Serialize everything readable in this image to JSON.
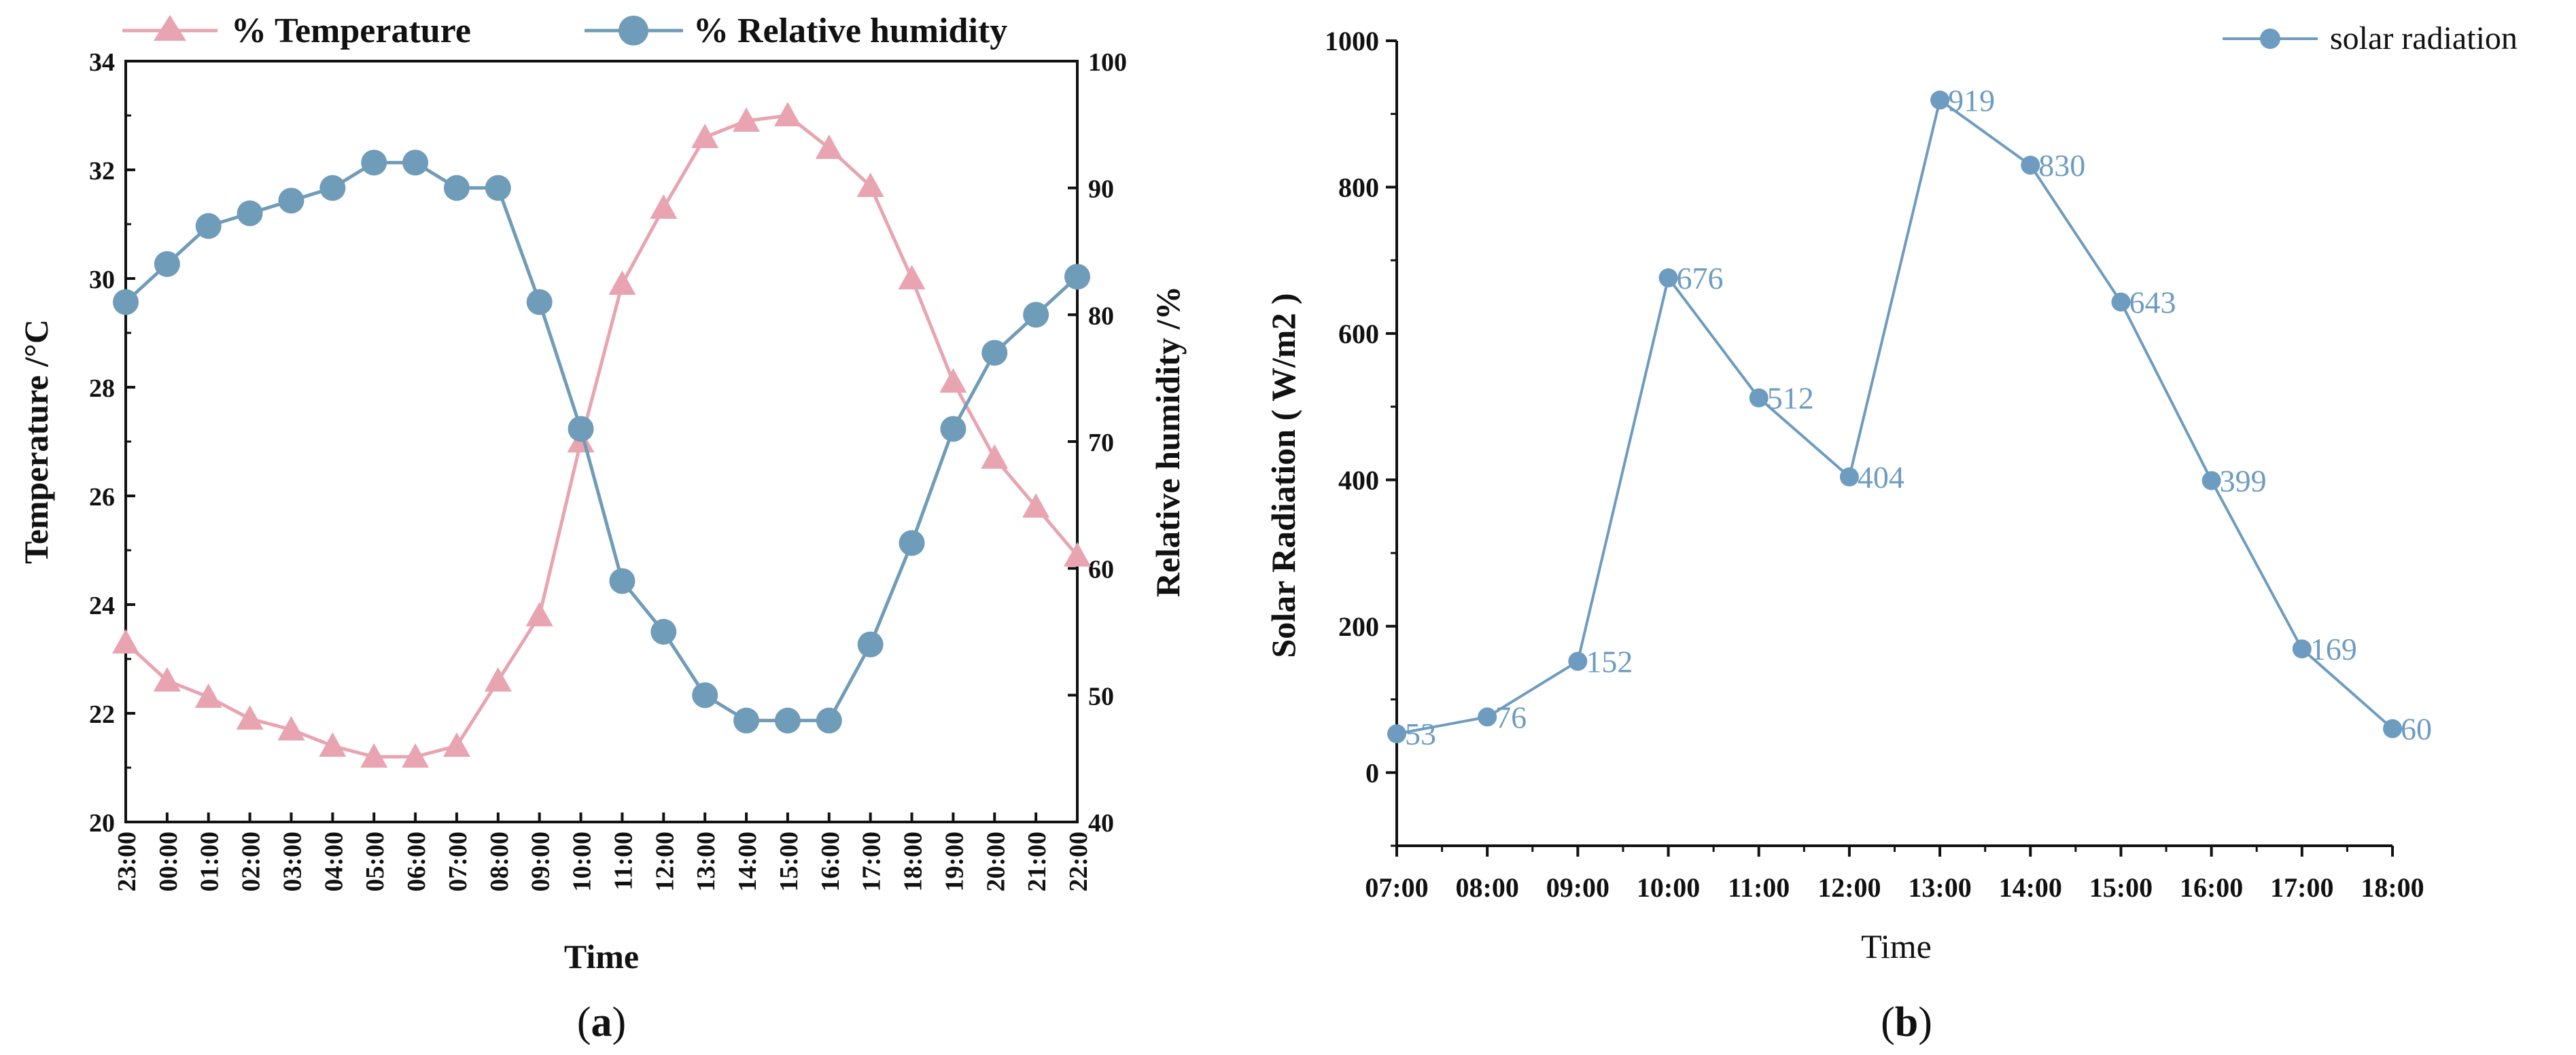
{
  "colors": {
    "temperature": "#e8a4b0",
    "humidity": "#6f9cb8",
    "solar": "#6d9cc0",
    "axis": "#111111"
  },
  "chart_data": [
    {
      "type": "line",
      "panel_label": "(a)",
      "panel_letter": "a",
      "xlabel": "Time",
      "ylabel": "Temperature /°C",
      "y2label": "Relative humidity /%",
      "categories": [
        "23:00",
        "00:00",
        "01:00",
        "02:00",
        "03:00",
        "04:00",
        "05:00",
        "06:00",
        "07:00",
        "08:00",
        "09:00",
        "10:00",
        "11:00",
        "12:00",
        "13:00",
        "14:00",
        "15:00",
        "16:00",
        "17:00",
        "18:00",
        "19:00",
        "20:00",
        "21:00",
        "22:00"
      ],
      "ylim": [
        20,
        34
      ],
      "yticks": [
        20,
        22,
        24,
        26,
        28,
        30,
        32,
        34
      ],
      "y2lim": [
        40,
        100
      ],
      "y2ticks": [
        40,
        50,
        60,
        70,
        80,
        90,
        100
      ],
      "series": [
        {
          "name": "% Temperature",
          "axis": "left",
          "marker": "triangle",
          "values": [
            23.3,
            22.6,
            22.3,
            21.9,
            21.7,
            21.4,
            21.2,
            21.2,
            21.4,
            22.6,
            23.8,
            27.0,
            29.9,
            31.3,
            32.6,
            32.9,
            33.0,
            32.4,
            31.7,
            30.0,
            28.1,
            26.7,
            25.8,
            24.9
          ]
        },
        {
          "name": "% Relative humidity",
          "axis": "right",
          "marker": "circle",
          "values": [
            81,
            84,
            87,
            88,
            89,
            90,
            92,
            92,
            90,
            90,
            81,
            71,
            59,
            55,
            50,
            48,
            48,
            48,
            54,
            62,
            71,
            77,
            80,
            83
          ]
        }
      ]
    },
    {
      "type": "line",
      "panel_label": "(b)",
      "panel_letter": "b",
      "xlabel": "Time",
      "ylabel": "Solar Radiation ( W/m2 )",
      "categories": [
        "07:00",
        "08:00",
        "09:00",
        "10:00",
        "11:00",
        "12:00",
        "13:00",
        "14:00",
        "15:00",
        "16:00",
        "17:00",
        "18:00"
      ],
      "ylim": [
        -100,
        1000
      ],
      "yticks": [
        0,
        200,
        400,
        600,
        800,
        1000
      ],
      "series": [
        {
          "name": "solar radiation",
          "marker": "circle",
          "values": [
            53,
            76,
            152,
            676,
            512,
            404,
            919,
            830,
            643,
            399,
            169,
            60
          ],
          "labels": [
            "53",
            "76",
            "152",
            "676",
            "512",
            "404",
            "919",
            "830",
            "643",
            "399",
            "169",
            "60"
          ]
        }
      ]
    }
  ]
}
